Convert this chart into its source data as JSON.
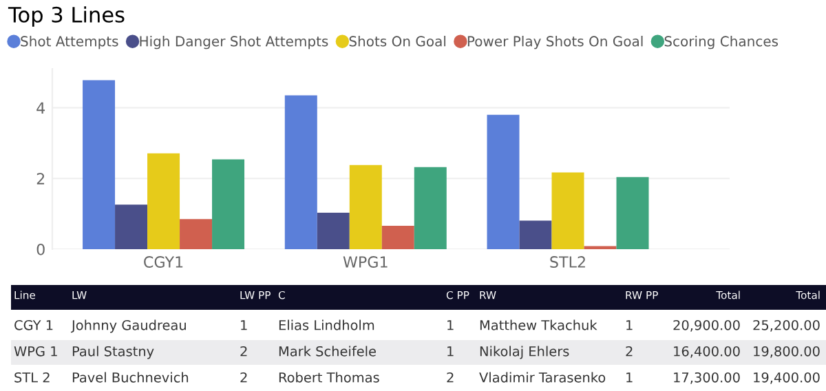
{
  "chart_data": {
    "type": "bar",
    "title": "Top 3 Lines",
    "categories": [
      "CGY1",
      "WPG1",
      "STL2"
    ],
    "series": [
      {
        "name": "Shot Attempts",
        "color": "#5b7fd9",
        "values": [
          4.78,
          4.35,
          3.8
        ]
      },
      {
        "name": "High Danger Shot Attempts",
        "color": "#4a4f8a",
        "values": [
          1.26,
          1.03,
          0.81
        ]
      },
      {
        "name": "Shots On Goal",
        "color": "#e6cb1a",
        "values": [
          2.71,
          2.38,
          2.17
        ]
      },
      {
        "name": "Power Play Shots On Goal",
        "color": "#d0604f",
        "values": [
          0.85,
          0.66,
          0.09
        ]
      },
      {
        "name": "Scoring Chances",
        "color": "#3fa57e",
        "values": [
          2.54,
          2.32,
          2.04
        ]
      }
    ],
    "ylim": [
      0,
      5.1
    ],
    "yticks": [
      0,
      2,
      4
    ],
    "grid": "y",
    "legend": "top left",
    "annotations": [
      "Line",
      "LW",
      "LW PP",
      "C",
      "C PP",
      "RW",
      "RW PP",
      "Total",
      "Total",
      "CGY 1",
      "Johnny Gaudreau",
      "1",
      "Elias Lindholm",
      "1",
      "Matthew Tkachuk",
      "1",
      "20,900.00",
      "25,200.00",
      "WPG 1",
      "Paul Stastny",
      "2",
      "Mark Scheifele",
      "1",
      "Nikolaj Ehlers",
      "2",
      "16,400.00",
      "19,800.00",
      "STL 2",
      "Pavel Buchnevich",
      "2",
      "Robert Thomas",
      "2",
      "Vladimir Tarasenko",
      "1",
      "17,300.00",
      "19,400.00"
    ]
  }
}
